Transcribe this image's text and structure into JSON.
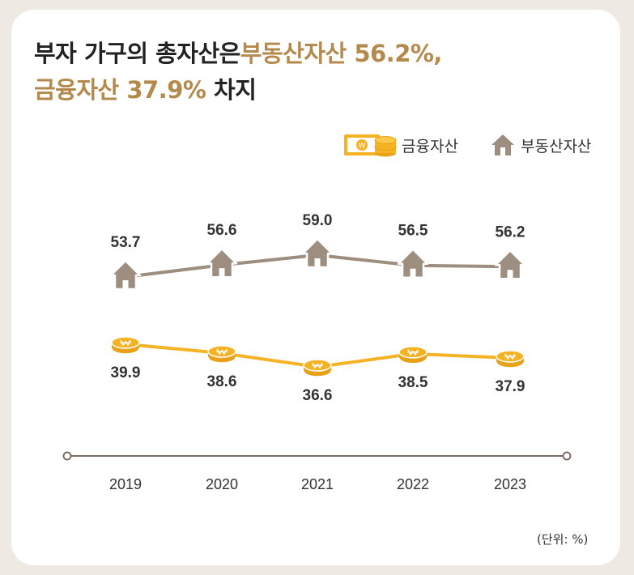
{
  "title": {
    "part1": "부자 가구의 총자산은",
    "part2": "부동산자산 56.2%,",
    "part3": "금융자산 37.9%",
    "part4": " 차지"
  },
  "legend": {
    "financial": "금융자산",
    "real_estate": "부동산자산"
  },
  "unit_label": "(단위: %)",
  "colors": {
    "financial": "#f5b324",
    "real_estate": "#9e8e80",
    "title_highlight": "#b48a4c",
    "axis": "#7a6e66"
  },
  "icons": {
    "financial_legend": "banknote-coins-icon",
    "real_estate_legend": "house-icon",
    "financial_marker": "coin-icon",
    "real_estate_marker": "house-icon"
  },
  "chart_data": {
    "type": "line",
    "categories": [
      "2019",
      "2020",
      "2021",
      "2022",
      "2023"
    ],
    "series": [
      {
        "name": "부동산자산",
        "values": [
          53.7,
          56.6,
          59.0,
          56.5,
          56.2
        ]
      },
      {
        "name": "금융자산",
        "values": [
          39.9,
          38.6,
          36.6,
          38.5,
          37.9
        ]
      }
    ],
    "title": "부자 가구의 총자산은부동산자산 56.2%, 금융자산 37.9% 차지",
    "xlabel": "",
    "ylabel": "",
    "unit": "%",
    "grid": false,
    "legend_position": "top-right"
  }
}
